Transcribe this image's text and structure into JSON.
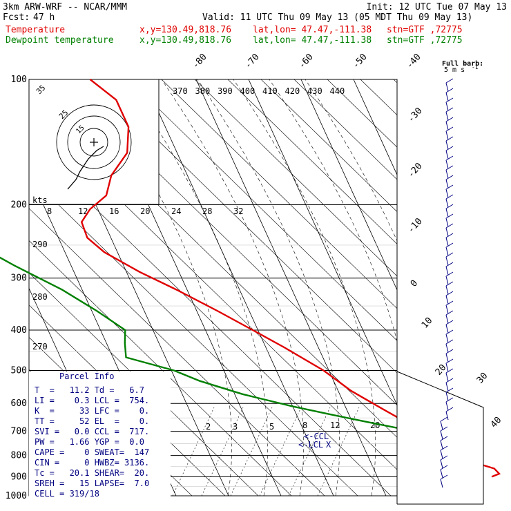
{
  "header": {
    "model": "3km ARW-WRF -- NCAR/MMM",
    "init": "Init: 12 UTC Tue 07 May 13",
    "fcst_label": "Fcst:",
    "fcst_value": "47 h",
    "valid": "Valid: 11 UTC Thu 09 May 13 (05 MDT Thu 09 May 13)"
  },
  "fields": [
    {
      "label": "Temperature",
      "loc": "x,y=130.49,818.76",
      "latlon": "lat,lon= 47.47,-111.38",
      "stn": "stn=GTF ,72775",
      "color": "#e00000"
    },
    {
      "label": "Dewpoint temperature",
      "loc": "x,y=130.49,818.76",
      "latlon": "lat,lon= 47.47,-111.38",
      "stn": "stn=GTF ,72775",
      "color": "#008000"
    }
  ],
  "chart_data": {
    "type": "line",
    "diagram": "skew-T log-P",
    "y_axis": {
      "scale": "log",
      "ticks": [
        100,
        200,
        300,
        400,
        500,
        600,
        700,
        800,
        900,
        1000
      ],
      "range": [
        1000,
        100
      ]
    },
    "isotherm_labels": [
      "-80",
      "-70",
      "-60",
      "-50",
      "-40",
      "-30",
      "-20",
      "-10",
      "0",
      "10",
      "20",
      "30",
      "40"
    ],
    "theta_labels_top": [
      "370",
      "380",
      "390",
      "400",
      "410",
      "420",
      "430",
      "440"
    ],
    "theta_labels_left": [
      "290",
      "280",
      "270"
    ],
    "mixing_ratio_labels": [
      "2",
      "3",
      "5",
      "8",
      "12",
      "20"
    ],
    "hodograph": {
      "units_label": "kts",
      "ring_labels": [
        "35",
        "25",
        "15"
      ],
      "speed_ticks": [
        "8",
        "12",
        "16",
        "20",
        "24",
        "28",
        "32"
      ],
      "points": [
        [
          7,
          -3
        ],
        [
          2,
          -6
        ],
        [
          -4,
          -12
        ],
        [
          -10,
          -21
        ],
        [
          -13,
          -27
        ],
        [
          -19,
          -34
        ]
      ]
    },
    "series": [
      {
        "name": "Temperature",
        "color": "#e00000",
        "points": [
          [
            900,
            1.8
          ],
          [
            885,
            3.5
          ],
          [
            860,
            3.0
          ],
          [
            830,
            -0.5
          ],
          [
            800,
            -3.0
          ],
          [
            760,
            -5.0
          ],
          [
            700,
            -7.5
          ],
          [
            620,
            -13.0
          ],
          [
            560,
            -17.5
          ],
          [
            500,
            -21.0
          ],
          [
            440,
            -26.5
          ],
          [
            400,
            -31.0
          ],
          [
            360,
            -36.0
          ],
          [
            320,
            -42.0
          ],
          [
            290,
            -47.5
          ],
          [
            260,
            -52.5
          ],
          [
            240,
            -54.5
          ],
          [
            220,
            -54.2
          ],
          [
            205,
            -51.5
          ],
          [
            190,
            -47.2
          ],
          [
            170,
            -44.5
          ],
          [
            150,
            -39.5
          ],
          [
            130,
            -37.0
          ],
          [
            112,
            -37.0
          ],
          [
            100,
            -40.2
          ]
        ]
      },
      {
        "name": "Dewpoint temperature",
        "color": "#008000",
        "points": [
          [
            895,
            -4.0
          ],
          [
            860,
            -4.5
          ],
          [
            820,
            -6.0
          ],
          [
            780,
            -7.0
          ],
          [
            730,
            -7.5
          ],
          [
            700,
            -9.0
          ],
          [
            670,
            -16.0
          ],
          [
            640,
            -23.0
          ],
          [
            610,
            -30.0
          ],
          [
            570,
            -38.5
          ],
          [
            530,
            -45.5
          ],
          [
            500,
            -49.5
          ],
          [
            465,
            -57.5
          ],
          [
            430,
            -56.5
          ],
          [
            400,
            -55.3
          ],
          [
            360,
            -59.0
          ],
          [
            320,
            -63.8
          ],
          [
            280,
            -70.8
          ],
          [
            250,
            -76.0
          ],
          [
            220,
            -80.8
          ],
          [
            200,
            -85.2
          ],
          [
            180,
            -89.2
          ],
          [
            150,
            -95.0
          ],
          [
            128,
            -94.0
          ],
          [
            110,
            -89.5
          ],
          [
            100,
            -85.7
          ]
        ]
      }
    ],
    "wind_barbs": {
      "title": "Full barb:",
      "subtitle": "5 m s",
      "superscript": "-1"
    }
  },
  "parcel_info": {
    "title": "Parcel Info",
    "rows": [
      "T  =   11.2 Td =   6.7",
      "LI =    0.3 LCL =  754.",
      "K  =     33 LFC =    0.",
      "TT =     52 EL  =    0.",
      "SVI =   0.0 CCL =  717.",
      "PW =   1.66 YGP =  0.0",
      "CAPE =    0 SWEAT=  147",
      "CIN =     0 HWBZ= 3136.",
      "Tc =   20.1 SHEAR=  20.",
      "SREH =   15 LAPSE=  7.0",
      "CELL = 319/18"
    ]
  },
  "annotations": {
    "ccl": "<-CCL",
    "lcl": "<-LCL",
    "lcl_x": "X"
  },
  "colors": {
    "isotherm": "#000000",
    "moist_adiabat": "#000000",
    "temperature": "#e00000",
    "dewpoint": "#008000",
    "parcel_text": "#000080",
    "wind": "#000080"
  }
}
